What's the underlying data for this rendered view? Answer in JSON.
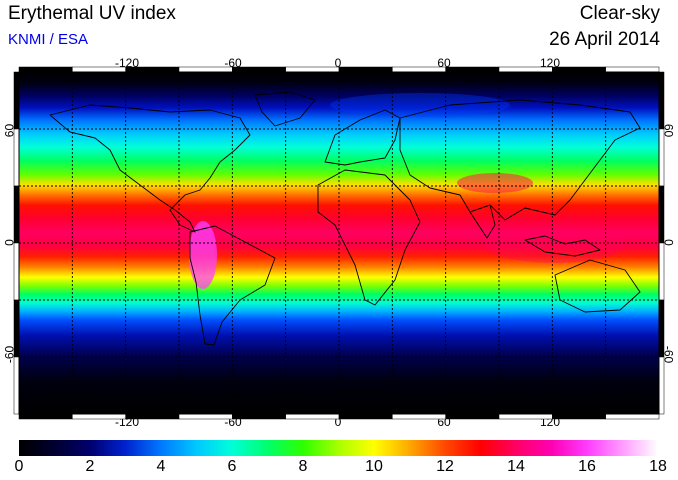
{
  "header": {
    "title": "Erythemal UV index",
    "subtitle": "KNMI / ESA",
    "condition": "Clear-sky",
    "date": "26 April 2014"
  },
  "colors": {
    "subtitle": "#0000ee",
    "grid": "#000000"
  },
  "map": {
    "quantity": "Erythemal UV index",
    "projection": "equirectangular",
    "lon_range": [
      -180,
      180
    ],
    "lat_range": [
      -90,
      90
    ],
    "grid": "dotted, every 30 degrees",
    "lon_ticks": [
      "-120",
      "-60",
      "0",
      "60",
      "120"
    ],
    "lat_ticks": [
      "60",
      "0",
      "-60"
    ],
    "pattern": {
      "peak_band": "about 20S to 35N, UV index 12-15",
      "andes_peak": "UV index 16-17",
      "tibet_peak": "UV index 13-14",
      "polar": "near 0"
    }
  },
  "colorbar": {
    "min": 0,
    "max": 18,
    "labels": [
      "0",
      "2",
      "4",
      "6",
      "8",
      "10",
      "12",
      "14",
      "16",
      "18"
    ],
    "stops": [
      {
        "v": 0,
        "c": "#000000"
      },
      {
        "v": 1,
        "c": "#000030"
      },
      {
        "v": 2,
        "c": "#00006e"
      },
      {
        "v": 3,
        "c": "#0022d0"
      },
      {
        "v": 4,
        "c": "#0078ff"
      },
      {
        "v": 5,
        "c": "#00c8ff"
      },
      {
        "v": 6,
        "c": "#00ffd8"
      },
      {
        "v": 7,
        "c": "#00ff6e"
      },
      {
        "v": 8,
        "c": "#2cff00"
      },
      {
        "v": 9,
        "c": "#a8ff00"
      },
      {
        "v": 10,
        "c": "#ffff00"
      },
      {
        "v": 11,
        "c": "#ffa800"
      },
      {
        "v": 12,
        "c": "#ff4800"
      },
      {
        "v": 13,
        "c": "#ff0000"
      },
      {
        "v": 14,
        "c": "#ff0064"
      },
      {
        "v": 15,
        "c": "#ff00b4"
      },
      {
        "v": 16,
        "c": "#ff3cff"
      },
      {
        "v": 17,
        "c": "#ff9cff"
      },
      {
        "v": 18,
        "c": "#ffffff"
      }
    ]
  }
}
